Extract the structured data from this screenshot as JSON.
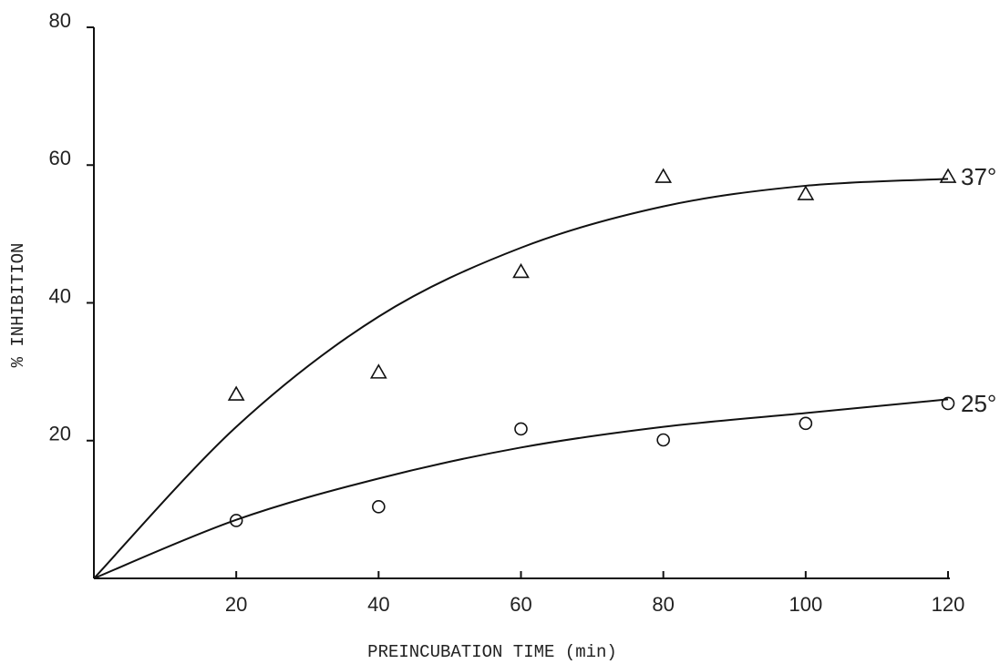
{
  "chart_data": {
    "type": "scatter",
    "x_label": "PREINCUBATION TIME (min)",
    "y_label": "% INHIBITION",
    "x": [
      20,
      40,
      60,
      80,
      100,
      120
    ],
    "curve_x": [
      0,
      20,
      40,
      60,
      80,
      100,
      120
    ],
    "series": [
      {
        "name": "37°",
        "marker": "triangle",
        "color": "#111111",
        "values": [
          26.7,
          29.9,
          44.5,
          58.3,
          55.8,
          58.3
        ],
        "curve": [
          0,
          22,
          38,
          48,
          54,
          57,
          58
        ]
      },
      {
        "name": "25°",
        "marker": "circle",
        "color": "#111111",
        "values": [
          8.4,
          10.4,
          21.7,
          20.1,
          22.5,
          25.4
        ],
        "curve": [
          0,
          8.5,
          14.5,
          19,
          22,
          24,
          26
        ]
      }
    ],
    "xlim": [
      0,
      120
    ],
    "ylim": [
      0,
      80
    ],
    "xticks": [
      20,
      40,
      60,
      80,
      100,
      120
    ],
    "yticks": [
      20,
      40,
      60,
      80
    ]
  }
}
